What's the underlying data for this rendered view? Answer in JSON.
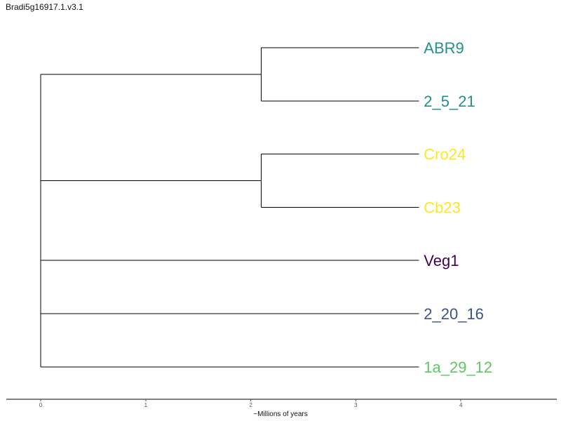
{
  "title": "Bradi5g16917.1.v3.1",
  "axis": {
    "xlabel": "~Millions of years",
    "ticks": [
      "0",
      "1",
      "2",
      "3",
      "4"
    ],
    "range": [
      -0.33,
      4.9
    ]
  },
  "leaves": [
    {
      "id": "ABR9",
      "label": "ABR9",
      "color": "#21918c"
    },
    {
      "id": "2_5_21",
      "label": "2_5_21",
      "color": "#21918c"
    },
    {
      "id": "Cro24",
      "label": "Cro24",
      "color": "#fde725"
    },
    {
      "id": "Cb23",
      "label": "Cb23",
      "color": "#fde725"
    },
    {
      "id": "Veg1",
      "label": "Veg1",
      "color": "#440154"
    },
    {
      "id": "2_20_16",
      "label": "2_20_16",
      "color": "#3b528b"
    },
    {
      "id": "1a_29_12",
      "label": "1a_29_12",
      "color": "#5ec962"
    }
  ],
  "tree": {
    "depth": 0,
    "children": [
      {
        "depth": 0,
        "children": [
          {
            "depth": 2.1,
            "children": [
              {
                "leaf": 0,
                "depth": 3.6
              },
              {
                "leaf": 1,
                "depth": 3.6
              }
            ]
          },
          {
            "depth": 2.1,
            "children": [
              {
                "leaf": 2,
                "depth": 3.6
              },
              {
                "leaf": 3,
                "depth": 3.6
              }
            ]
          }
        ]
      },
      {
        "leaf": 4,
        "depth": 3.6
      },
      {
        "leaf": 5,
        "depth": 3.6
      },
      {
        "leaf": 6,
        "depth": 3.6
      }
    ]
  }
}
